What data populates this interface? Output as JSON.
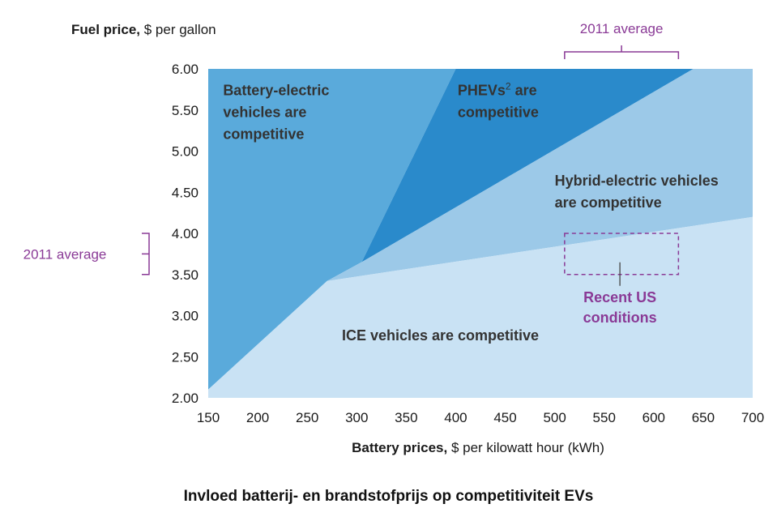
{
  "chart_data": {
    "type": "area",
    "xlabel_bold": "Battery prices,",
    "xlabel_rest": " $ per kilowatt hour (kWh)",
    "ylabel_bold": "Fuel price,",
    "ylabel_rest": " $ per gallon",
    "xlim": [
      150,
      700
    ],
    "ylim": [
      2.0,
      6.0
    ],
    "x_ticks": [
      "150",
      "200",
      "250",
      "300",
      "350",
      "400",
      "450",
      "500",
      "550",
      "600",
      "650",
      "700"
    ],
    "x_tick_values": [
      150,
      200,
      250,
      300,
      350,
      400,
      450,
      500,
      550,
      600,
      650,
      700
    ],
    "y_ticks": [
      "2.00",
      "2.50",
      "3.00",
      "3.50",
      "4.00",
      "4.50",
      "5.00",
      "5.50",
      "6.00"
    ],
    "y_tick_values": [
      2.0,
      2.5,
      3.0,
      3.5,
      4.0,
      4.5,
      5.0,
      5.5,
      6.0
    ],
    "regions": [
      {
        "name_lines": [
          "Battery-electric",
          "vehicles are",
          "competitive"
        ],
        "label_at": [
          165,
          5.68
        ],
        "color": "#5aaadb",
        "polygon": [
          [
            150,
            2.1
          ],
          [
            270,
            3.42
          ],
          [
            305,
            3.65
          ],
          [
            400,
            6.0
          ],
          [
            150,
            6.0
          ]
        ]
      },
      {
        "name_lines": [
          "PHEVs",
          "competitive"
        ],
        "name_sup": "2",
        "name_suffix": " are",
        "label_at": [
          402,
          5.68
        ],
        "color": "#2a8acb",
        "polygon": [
          [
            305,
            3.65
          ],
          [
            400,
            6.0
          ],
          [
            640,
            6.0
          ]
        ]
      },
      {
        "name_lines": [
          "Hybrid-electric vehicles",
          "are competitive"
        ],
        "label_at": [
          500,
          4.58
        ],
        "color": "#9cc9e8",
        "polygon": [
          [
            270,
            3.42
          ],
          [
            305,
            3.65
          ],
          [
            640,
            6.0
          ],
          [
            700,
            6.0
          ],
          [
            700,
            4.2
          ]
        ]
      },
      {
        "name_lines": [
          "ICE vehicles are competitive"
        ],
        "label_at": [
          285,
          2.7
        ],
        "color": "#c9e2f4",
        "polygon": [
          [
            150,
            2.1
          ],
          [
            270,
            3.42
          ],
          [
            700,
            4.2
          ],
          [
            700,
            2.0
          ],
          [
            150,
            2.0
          ]
        ]
      }
    ],
    "annotations": {
      "x_average_label": "2011 average",
      "x_average_range": [
        510,
        625
      ],
      "y_average_label": "2011 average",
      "y_average_range": [
        3.5,
        4.0
      ],
      "recent_label_lines": [
        "Recent US",
        "conditions"
      ],
      "recent_box": {
        "x": [
          510,
          625
        ],
        "y": [
          3.5,
          4.0
        ]
      },
      "color": "#8a3a96"
    }
  },
  "caption": "Invloed batterij- en brandstofprijs op competitiviteit EVs"
}
